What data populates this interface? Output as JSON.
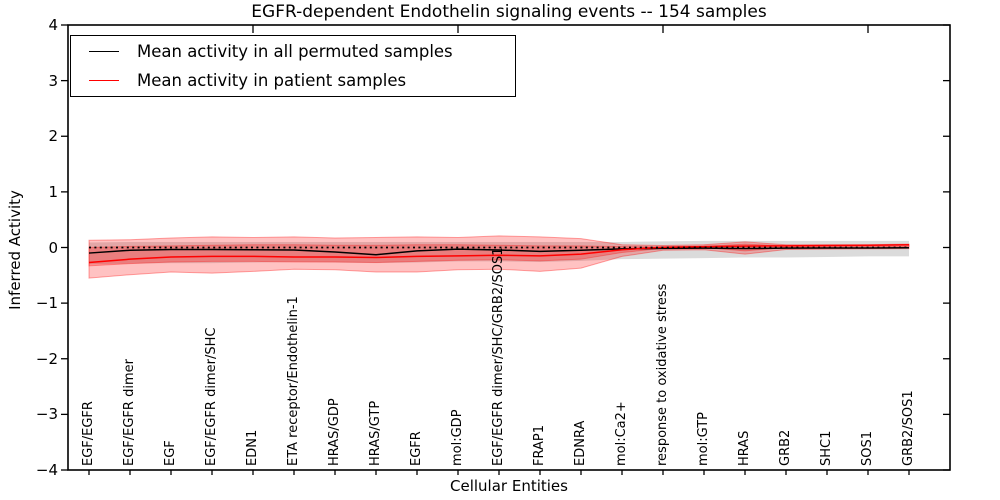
{
  "title": "EGFR-dependent Endothelin signaling events -- 154 samples",
  "axes": {
    "ylabel": "Inferred Activity",
    "xlabel": "Cellular Entities",
    "ytick_labels": [
      "4",
      "3",
      "2",
      "1",
      "0",
      "−1",
      "−2",
      "−3",
      "−4"
    ]
  },
  "legend": {
    "items": [
      {
        "label": "Mean activity in all permuted samples",
        "color": "#000000"
      },
      {
        "label": "Mean activity in patient samples",
        "color": "#ff0000"
      }
    ]
  },
  "colors": {
    "patient_line": "#ff0000",
    "permuted_line": "#000000",
    "patient_band_fill": "rgba(255,0,0,0.24)",
    "permuted_band_fill": "rgba(125,125,125,0.28)"
  },
  "chart_data": {
    "type": "line",
    "title": "EGFR-dependent Endothelin signaling events -- 154 samples",
    "xlabel": "Cellular Entities",
    "ylabel": "Inferred Activity",
    "ylim": [
      -4,
      4
    ],
    "yticks": [
      4,
      3,
      2,
      1,
      0,
      -1,
      -2,
      -3,
      -4
    ],
    "grid": false,
    "legend_position": "upper left",
    "top_tick_indices": [
      4,
      9,
      14,
      19
    ],
    "categories": [
      "EGF/EGFR",
      "EGF/EGFR dimer",
      "EGF",
      "EGF/EGFR dimer/SHC",
      "EDN1",
      "ETA receptor/Endothelin-1",
      "HRAS/GDP",
      "HRAS/GTP",
      "EGFR",
      "mol:GDP",
      "EGF/EGFR dimer/SHC/GRB2/SOS1",
      "FRAP1",
      "EDNRA",
      "mol:Ca2+",
      "response to oxidative stress",
      "mol:GTP",
      "HRAS",
      "GRB2",
      "SHC1",
      "SOS1",
      "GRB2/SOS1"
    ],
    "series": [
      {
        "name": "Mean activity in all permuted samples",
        "color": "#000000",
        "style": "solid",
        "width": 1.5,
        "values": [
          -0.1,
          -0.05,
          -0.035,
          -0.035,
          -0.04,
          -0.045,
          -0.08,
          -0.13,
          -0.06,
          -0.03,
          -0.045,
          -0.07,
          -0.05,
          -0.025,
          -0.015,
          -0.012,
          -0.018,
          -0.012,
          -0.01,
          -0.008,
          -0.005
        ]
      },
      {
        "name": "Mean activity in patient samples",
        "color": "#ff0000",
        "style": "solid",
        "width": 1.5,
        "values": [
          -0.27,
          -0.21,
          -0.17,
          -0.16,
          -0.16,
          -0.17,
          -0.17,
          -0.18,
          -0.16,
          -0.15,
          -0.14,
          -0.15,
          -0.12,
          -0.04,
          0.005,
          0.015,
          0.025,
          0.03,
          0.035,
          0.04,
          0.05
        ]
      },
      {
        "name": "zero reference",
        "color": "#000000",
        "style": "dotted",
        "width": 1.8,
        "values": [
          0,
          0,
          0,
          0,
          0,
          0,
          0,
          0,
          0,
          0,
          0,
          0,
          0,
          0,
          0,
          0,
          0,
          0,
          0,
          0,
          0
        ]
      }
    ],
    "bands": [
      {
        "name": "permuted-samples-range-band",
        "fill": "rgba(125,125,125,0.28)",
        "stroke": "none",
        "upper": [
          0.09,
          0.1,
          0.1,
          0.1,
          0.1,
          0.1,
          0.1,
          0.1,
          0.1,
          0.1,
          0.1,
          0.1,
          0.1,
          0.1,
          0.11,
          0.12,
          0.12,
          0.12,
          0.12,
          0.12,
          0.12
        ],
        "lower": [
          -0.3,
          -0.29,
          -0.28,
          -0.28,
          -0.27,
          -0.26,
          -0.27,
          -0.28,
          -0.27,
          -0.25,
          -0.25,
          -0.26,
          -0.24,
          -0.21,
          -0.2,
          -0.19,
          -0.18,
          -0.18,
          -0.17,
          -0.16,
          -0.16
        ]
      },
      {
        "name": "patient-samples-outer-band",
        "fill": "rgba(255,0,0,0.24)",
        "stroke": "rgba(255,0,0,0.35)",
        "upper": [
          0.13,
          0.14,
          0.17,
          0.19,
          0.18,
          0.19,
          0.17,
          0.18,
          0.19,
          0.18,
          0.21,
          0.19,
          0.16,
          0.05,
          0.035,
          0.05,
          0.1,
          0.05,
          0.05,
          0.05,
          0.06
        ],
        "lower": [
          -0.55,
          -0.49,
          -0.44,
          -0.46,
          -0.43,
          -0.39,
          -0.4,
          -0.44,
          -0.44,
          -0.4,
          -0.39,
          -0.43,
          -0.37,
          -0.16,
          -0.05,
          -0.04,
          -0.12,
          -0.035,
          -0.03,
          -0.025,
          -0.02
        ]
      },
      {
        "name": "patient-samples-inner-band",
        "fill": "rgba(255,0,0,0.24)",
        "stroke": "rgba(255,0,0,0.3)",
        "upper": [
          0.0,
          0.02,
          0.03,
          0.04,
          0.05,
          0.05,
          0.04,
          0.04,
          0.05,
          0.05,
          0.04,
          0.03,
          0.03,
          0.015,
          0.01,
          0.02,
          0.06,
          0.03,
          0.035,
          0.04,
          0.05
        ],
        "lower": [
          -0.33,
          -0.29,
          -0.26,
          -0.25,
          -0.25,
          -0.26,
          -0.26,
          -0.27,
          -0.25,
          -0.23,
          -0.22,
          -0.24,
          -0.21,
          -0.09,
          -0.015,
          0.0,
          -0.06,
          0.0,
          0.01,
          0.015,
          0.02
        ]
      }
    ]
  }
}
